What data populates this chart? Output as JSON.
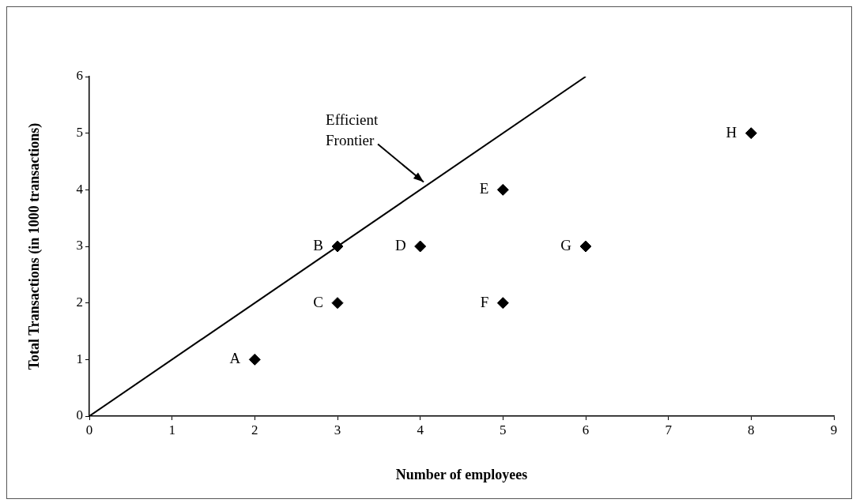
{
  "chart_data": {
    "type": "scatter",
    "xlabel": "Number of employees",
    "ylabel": "Total Transactions (in 1000 transactions)",
    "series": [
      {
        "color": "#000000",
        "marker": "diamond",
        "x": [
          2,
          3,
          3,
          4,
          5,
          5,
          6,
          8
        ],
        "values": [
          1,
          3,
          2,
          3,
          4,
          2,
          3,
          5
        ]
      },
      {
        "type": "line",
        "color": "#000000",
        "marker": "none",
        "line_style": "solid",
        "x": [
          0,
          6
        ],
        "values": [
          0,
          6
        ]
      }
    ],
    "annotations": [
      {
        "text": "A",
        "x": 2,
        "y": 1
      },
      {
        "text": "B",
        "x": 3,
        "y": 3
      },
      {
        "text": "C",
        "x": 3,
        "y": 2
      },
      {
        "text": "D",
        "x": 4,
        "y": 3
      },
      {
        "text": "E",
        "x": 5,
        "y": 4
      },
      {
        "text": "F",
        "x": 5,
        "y": 2
      },
      {
        "text": "G",
        "x": 6,
        "y": 3
      },
      {
        "text": "H",
        "x": 8,
        "y": 5
      },
      "Efficient Frontier"
    ],
    "xlim": [
      0,
      9
    ],
    "xticks": [
      0,
      1,
      2,
      3,
      4,
      5,
      6,
      7,
      8,
      9
    ],
    "ylim": [
      0,
      6
    ],
    "yticks": [
      0,
      1,
      2,
      3,
      4,
      5,
      6
    ],
    "grid": false,
    "legend": false
  }
}
